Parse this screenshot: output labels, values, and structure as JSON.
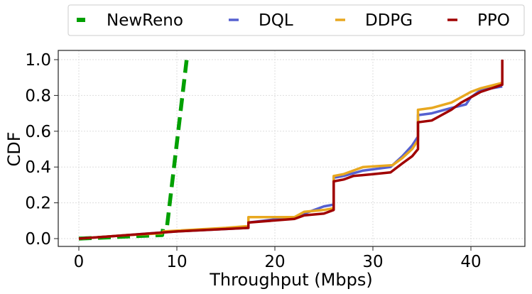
{
  "chart_data": {
    "type": "line",
    "xlabel": "Throughput (Mbps)",
    "ylabel": "CDF",
    "xlim": [
      -2,
      45.5
    ],
    "ylim": [
      -0.05,
      1.05
    ],
    "xticks": [
      0,
      10,
      20,
      30,
      40
    ],
    "yticks": [
      0.0,
      0.2,
      0.4,
      0.6,
      0.8,
      1.0
    ],
    "grid": true,
    "legend": "top-outside",
    "series": [
      {
        "name": "NewReno",
        "color": "#00a000",
        "dash": true,
        "points": [
          [
            0,
            0
          ],
          [
            8.5,
            0.02
          ],
          [
            8.6,
            0.06
          ],
          [
            9.0,
            0.07
          ],
          [
            11,
            1.0
          ]
        ]
      },
      {
        "name": "DQL",
        "color": "#5560d0",
        "dash": false,
        "points": [
          [
            0,
            0
          ],
          [
            5,
            0.02
          ],
          [
            10,
            0.04
          ],
          [
            17.3,
            0.06
          ],
          [
            17.3,
            0.09
          ],
          [
            22,
            0.12
          ],
          [
            23,
            0.14
          ],
          [
            25,
            0.18
          ],
          [
            26,
            0.19
          ],
          [
            26,
            0.34
          ],
          [
            27,
            0.35
          ],
          [
            29,
            0.38
          ],
          [
            31.8,
            0.4
          ],
          [
            33,
            0.46
          ],
          [
            34,
            0.52
          ],
          [
            34.6,
            0.57
          ],
          [
            34.6,
            0.69
          ],
          [
            36,
            0.7
          ],
          [
            38,
            0.73
          ],
          [
            39.5,
            0.75
          ],
          [
            40,
            0.79
          ],
          [
            41,
            0.83
          ],
          [
            43.2,
            0.85
          ]
        ]
      },
      {
        "name": "DDPG",
        "color": "#e8a820",
        "dash": false,
        "points": [
          [
            0,
            0
          ],
          [
            5,
            0.02
          ],
          [
            8.5,
            0.03
          ],
          [
            8.6,
            0.04
          ],
          [
            15,
            0.06
          ],
          [
            17.3,
            0.07
          ],
          [
            17.3,
            0.12
          ],
          [
            22,
            0.12
          ],
          [
            23,
            0.15
          ],
          [
            25,
            0.16
          ],
          [
            26,
            0.17
          ],
          [
            26,
            0.35
          ],
          [
            27,
            0.36
          ],
          [
            29,
            0.4
          ],
          [
            32,
            0.41
          ],
          [
            33,
            0.45
          ],
          [
            34,
            0.5
          ],
          [
            34.6,
            0.55
          ],
          [
            34.6,
            0.72
          ],
          [
            36,
            0.73
          ],
          [
            38,
            0.76
          ],
          [
            40,
            0.82
          ],
          [
            41,
            0.84
          ],
          [
            43.2,
            0.87
          ]
        ]
      },
      {
        "name": "PPO",
        "color": "#a00000",
        "dash": false,
        "points": [
          [
            0,
            0
          ],
          [
            5,
            0.02
          ],
          [
            10,
            0.04
          ],
          [
            17.3,
            0.06
          ],
          [
            17.3,
            0.09
          ],
          [
            22,
            0.11
          ],
          [
            23,
            0.13
          ],
          [
            25,
            0.14
          ],
          [
            26,
            0.16
          ],
          [
            26,
            0.32
          ],
          [
            27,
            0.33
          ],
          [
            28,
            0.35
          ],
          [
            30,
            0.36
          ],
          [
            31.8,
            0.37
          ],
          [
            33,
            0.42
          ],
          [
            34,
            0.46
          ],
          [
            34.6,
            0.5
          ],
          [
            34.6,
            0.65
          ],
          [
            36,
            0.66
          ],
          [
            37,
            0.69
          ],
          [
            38,
            0.72
          ],
          [
            39,
            0.76
          ],
          [
            40,
            0.79
          ],
          [
            41,
            0.82
          ],
          [
            43.2,
            0.86
          ],
          [
            43.2,
            1.0
          ]
        ]
      }
    ]
  }
}
